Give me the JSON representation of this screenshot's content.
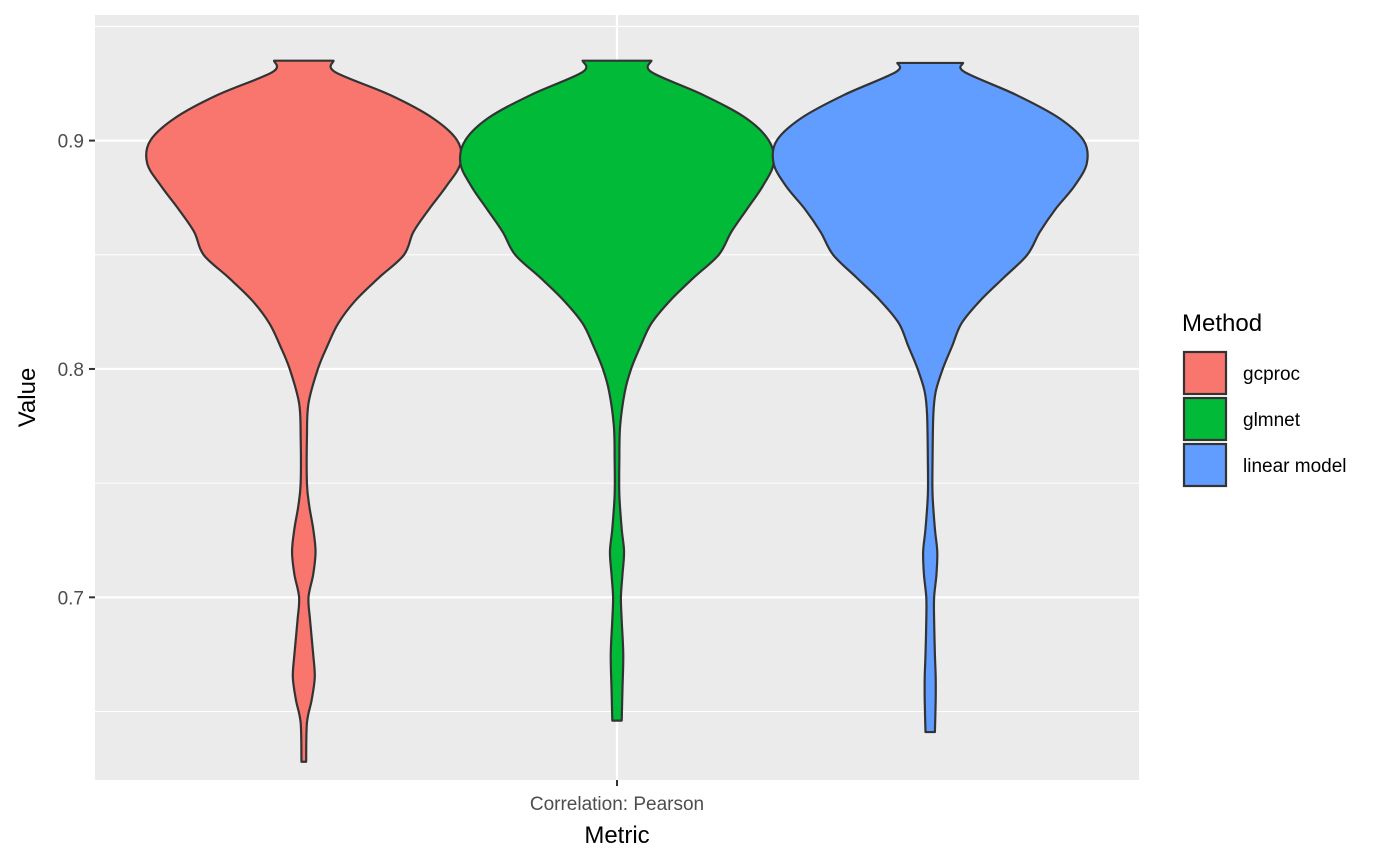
{
  "chart_data": {
    "type": "violin",
    "xlabel": "Metric",
    "ylabel": "Value",
    "categories": [
      "Correlation: Pearson"
    ],
    "ylim": [
      0.62,
      0.955
    ],
    "yticks": [
      "0.7",
      "0.8",
      "0.9"
    ],
    "ytick_values": [
      0.7,
      0.8,
      0.9
    ],
    "grid": true,
    "legend": {
      "title": "Method",
      "position": "right"
    },
    "series": [
      {
        "name": "gcproc",
        "color": "#F8766D",
        "min": 0.628,
        "max": 0.935,
        "profile": [
          [
            0.628,
            0.015
          ],
          [
            0.645,
            0.02
          ],
          [
            0.655,
            0.05
          ],
          [
            0.665,
            0.07
          ],
          [
            0.675,
            0.06
          ],
          [
            0.69,
            0.04
          ],
          [
            0.7,
            0.03
          ],
          [
            0.71,
            0.06
          ],
          [
            0.72,
            0.075
          ],
          [
            0.73,
            0.06
          ],
          [
            0.74,
            0.035
          ],
          [
            0.75,
            0.02
          ],
          [
            0.77,
            0.02
          ],
          [
            0.785,
            0.03
          ],
          [
            0.8,
            0.09
          ],
          [
            0.81,
            0.15
          ],
          [
            0.82,
            0.22
          ],
          [
            0.83,
            0.33
          ],
          [
            0.84,
            0.48
          ],
          [
            0.85,
            0.64
          ],
          [
            0.86,
            0.7
          ],
          [
            0.87,
            0.8
          ],
          [
            0.88,
            0.91
          ],
          [
            0.89,
            1.0
          ],
          [
            0.9,
            0.98
          ],
          [
            0.91,
            0.82
          ],
          [
            0.92,
            0.55
          ],
          [
            0.93,
            0.2
          ],
          [
            0.935,
            0.19
          ]
        ]
      },
      {
        "name": "glmnet",
        "color": "#00BA38",
        "min": 0.646,
        "max": 0.935,
        "profile": [
          [
            0.646,
            0.03
          ],
          [
            0.66,
            0.035
          ],
          [
            0.675,
            0.04
          ],
          [
            0.69,
            0.03
          ],
          [
            0.7,
            0.025
          ],
          [
            0.71,
            0.035
          ],
          [
            0.72,
            0.045
          ],
          [
            0.73,
            0.03
          ],
          [
            0.745,
            0.015
          ],
          [
            0.76,
            0.015
          ],
          [
            0.775,
            0.02
          ],
          [
            0.79,
            0.05
          ],
          [
            0.8,
            0.09
          ],
          [
            0.81,
            0.15
          ],
          [
            0.82,
            0.22
          ],
          [
            0.83,
            0.34
          ],
          [
            0.84,
            0.49
          ],
          [
            0.85,
            0.65
          ],
          [
            0.86,
            0.73
          ],
          [
            0.87,
            0.83
          ],
          [
            0.88,
            0.93
          ],
          [
            0.89,
            1.0
          ],
          [
            0.9,
            0.97
          ],
          [
            0.91,
            0.82
          ],
          [
            0.92,
            0.55
          ],
          [
            0.93,
            0.22
          ],
          [
            0.935,
            0.22
          ]
        ]
      },
      {
        "name": "linear model",
        "color": "#619CFF",
        "min": 0.641,
        "max": 0.934,
        "profile": [
          [
            0.641,
            0.03
          ],
          [
            0.655,
            0.035
          ],
          [
            0.665,
            0.035
          ],
          [
            0.675,
            0.03
          ],
          [
            0.69,
            0.025
          ],
          [
            0.7,
            0.025
          ],
          [
            0.71,
            0.04
          ],
          [
            0.72,
            0.045
          ],
          [
            0.73,
            0.03
          ],
          [
            0.745,
            0.015
          ],
          [
            0.76,
            0.015
          ],
          [
            0.78,
            0.02
          ],
          [
            0.79,
            0.035
          ],
          [
            0.8,
            0.08
          ],
          [
            0.81,
            0.14
          ],
          [
            0.82,
            0.2
          ],
          [
            0.83,
            0.32
          ],
          [
            0.84,
            0.47
          ],
          [
            0.85,
            0.62
          ],
          [
            0.86,
            0.7
          ],
          [
            0.87,
            0.8
          ],
          [
            0.88,
            0.92
          ],
          [
            0.89,
            1.0
          ],
          [
            0.9,
            0.98
          ],
          [
            0.91,
            0.82
          ],
          [
            0.92,
            0.55
          ],
          [
            0.93,
            0.22
          ],
          [
            0.934,
            0.21
          ]
        ]
      }
    ]
  }
}
